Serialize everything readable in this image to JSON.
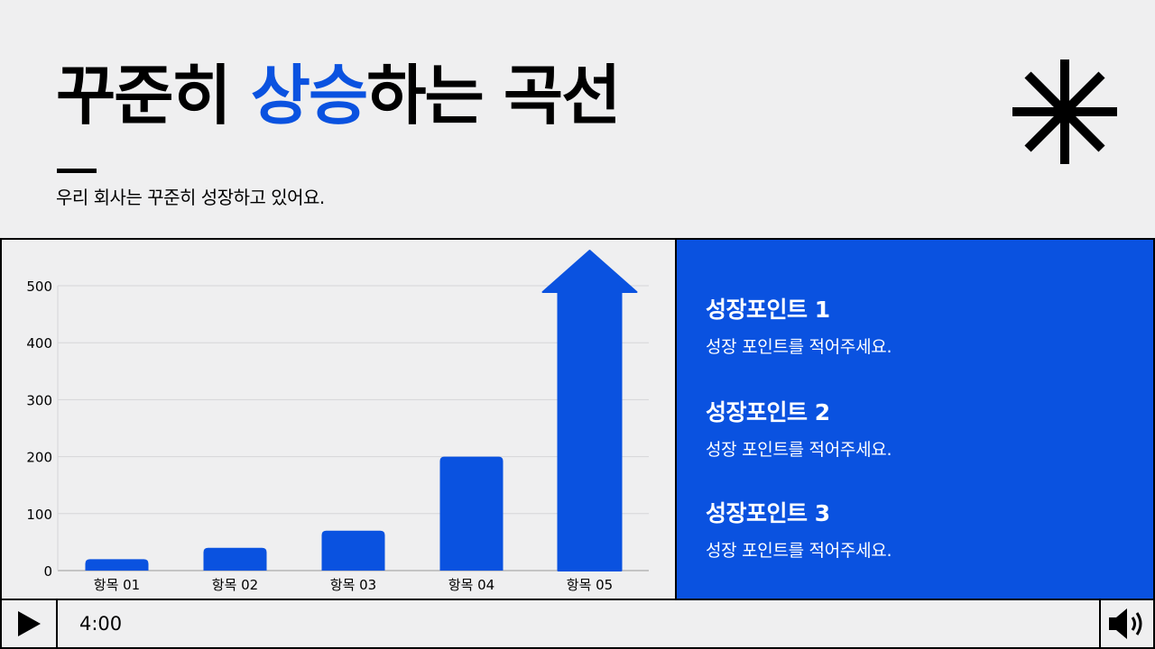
{
  "title": {
    "part1": "꾸준히 ",
    "accent": "상승",
    "part2": "하는 곡선"
  },
  "subtitle": "우리 회사는 꾸준히 성장하고 있어요.",
  "icons": {
    "decoration": "asterisk-icon",
    "play": "play-icon",
    "volume": "speaker-icon"
  },
  "colors": {
    "accent": "#0a52e0",
    "background": "#efeff0",
    "text": "#000000"
  },
  "chart_data": {
    "type": "bar",
    "categories": [
      "항목 01",
      "항목 02",
      "항목 03",
      "항목 04",
      "항목 05"
    ],
    "values": [
      20,
      40,
      70,
      200,
      500
    ],
    "ylim": [
      0,
      500
    ],
    "yticks": [
      0,
      100,
      200,
      300,
      400,
      500
    ],
    "grid": true,
    "last_bar_style": "arrow",
    "color": "#0a52e0"
  },
  "points": [
    {
      "title": "성장포인트 1",
      "desc": "성장 포인트를 적어주세요."
    },
    {
      "title": "성장포인트 2",
      "desc": "성장 포인트를 적어주세요."
    },
    {
      "title": "성장포인트 3",
      "desc": "성장 포인트를 적어주세요."
    }
  ],
  "player": {
    "time": "4:00"
  }
}
